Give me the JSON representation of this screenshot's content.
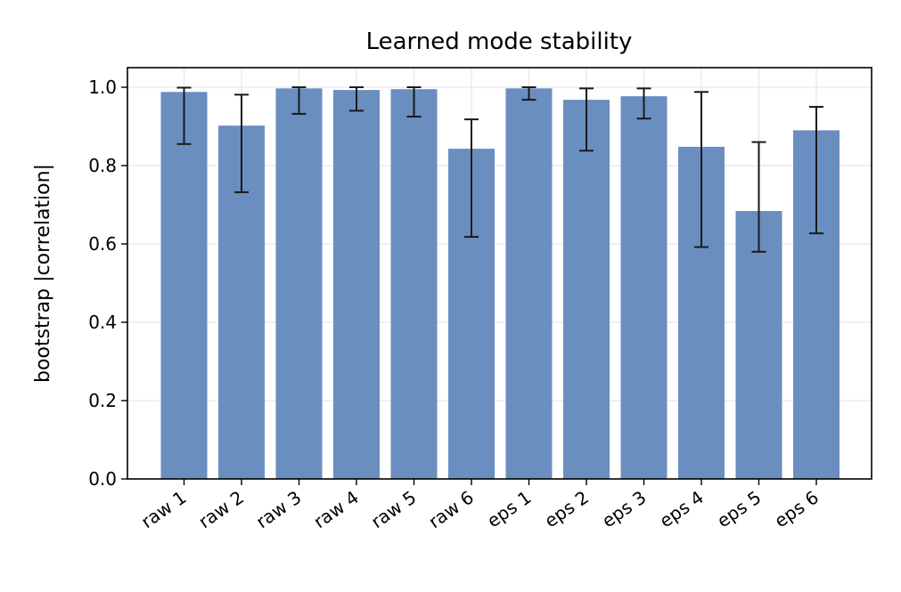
{
  "chart_data": {
    "type": "bar",
    "title": "Learned mode stability",
    "xlabel": "",
    "ylabel": "bootstrap |correlation|",
    "categories": [
      "raw 1",
      "raw 2",
      "raw 3",
      "raw 4",
      "raw 5",
      "raw 6",
      "eps 1",
      "eps 2",
      "eps 3",
      "eps 4",
      "eps 5",
      "eps 6"
    ],
    "values": [
      0.988,
      0.902,
      0.997,
      0.993,
      0.995,
      0.843,
      0.997,
      0.968,
      0.977,
      0.848,
      0.684,
      0.89
    ],
    "error_low": [
      0.855,
      0.732,
      0.932,
      0.94,
      0.925,
      0.618,
      0.968,
      0.838,
      0.92,
      0.592,
      0.58,
      0.627
    ],
    "error_high": [
      0.999,
      0.981,
      1.0,
      1.0,
      1.0,
      0.918,
      1.0,
      0.997,
      0.997,
      0.988,
      0.86,
      0.95
    ],
    "ylim": [
      0,
      1.05
    ],
    "yticks": [
      "0.0",
      "0.2",
      "0.4",
      "0.6",
      "0.8",
      "1.0"
    ],
    "grid": true,
    "bar_color": "#6a8ec0",
    "errorbar_color": "#1a1a1a"
  }
}
